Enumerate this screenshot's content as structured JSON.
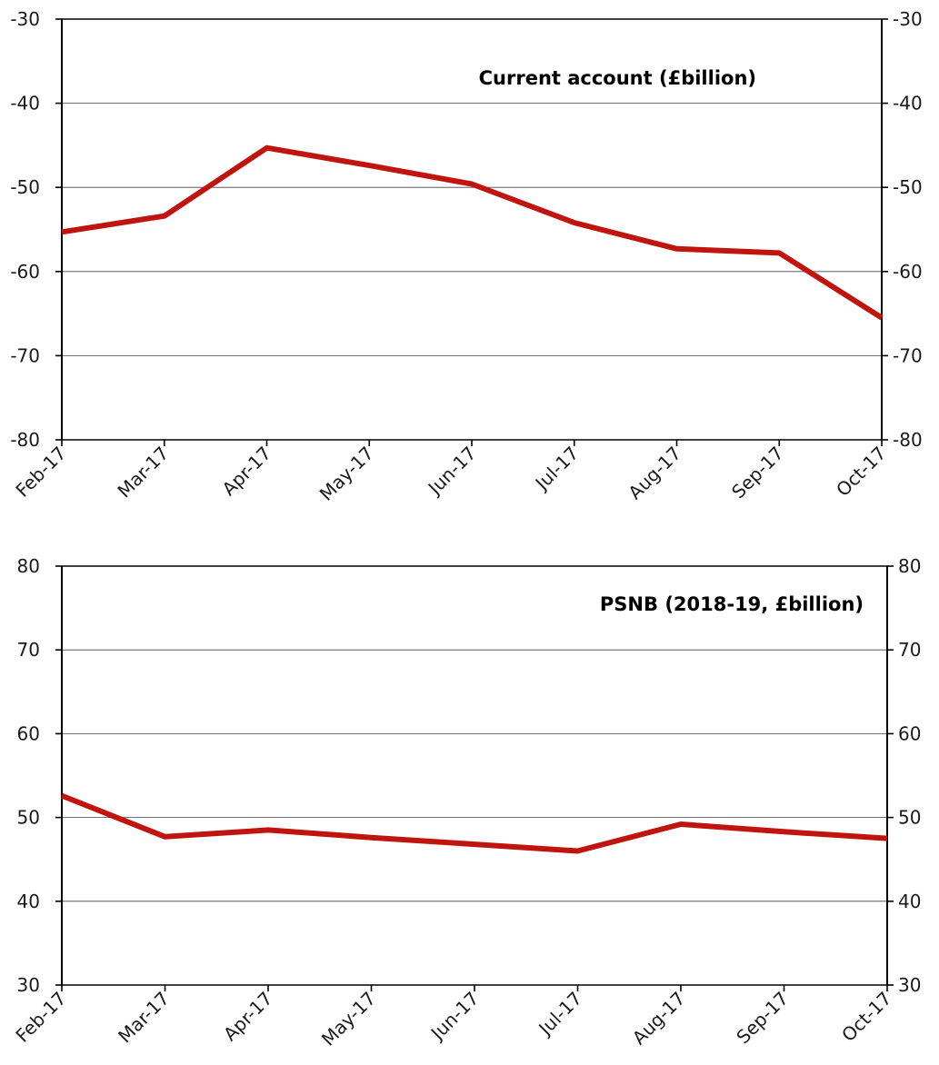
{
  "chart_data": [
    {
      "type": "line",
      "title": "Current account (£billion)",
      "xlabel": "",
      "ylabel": "",
      "categories": [
        "Feb-17",
        "Mar-17",
        "Apr-17",
        "May-17",
        "Jun-17",
        "Jul-17",
        "Aug-17",
        "Sep-17",
        "Oct-17"
      ],
      "series": [
        {
          "values": [
            -55.3,
            -53.4,
            -45.3,
            -47.4,
            -49.6,
            -54.2,
            -57.3,
            -57.8,
            -65.5
          ],
          "color": "#c0150f"
        }
      ],
      "ylim": [
        -80,
        -30
      ],
      "yticks": [
        "-30",
        "-40",
        "-50",
        "-60",
        "-70",
        "-80"
      ],
      "ytick_values": [
        -30,
        -40,
        -50,
        -60,
        -70,
        -80
      ],
      "grid": true,
      "right_axis": true
    },
    {
      "type": "line",
      "title": "PSNB (2018-19, £billion)",
      "xlabel": "",
      "ylabel": "",
      "categories": [
        "Feb-17",
        "Mar-17",
        "Apr-17",
        "May-17",
        "Jun-17",
        "Jul-17",
        "Aug-17",
        "Sep-17",
        "Oct-17"
      ],
      "series": [
        {
          "values": [
            52.6,
            47.7,
            48.5,
            47.6,
            46.8,
            46.0,
            49.2,
            48.3,
            47.5
          ],
          "color": "#c0150f"
        }
      ],
      "ylim": [
        30,
        80
      ],
      "yticks": [
        "80",
        "70",
        "60",
        "50",
        "40",
        "30"
      ],
      "ytick_values": [
        80,
        70,
        60,
        50,
        40,
        30
      ],
      "grid": true,
      "right_axis": true
    }
  ]
}
